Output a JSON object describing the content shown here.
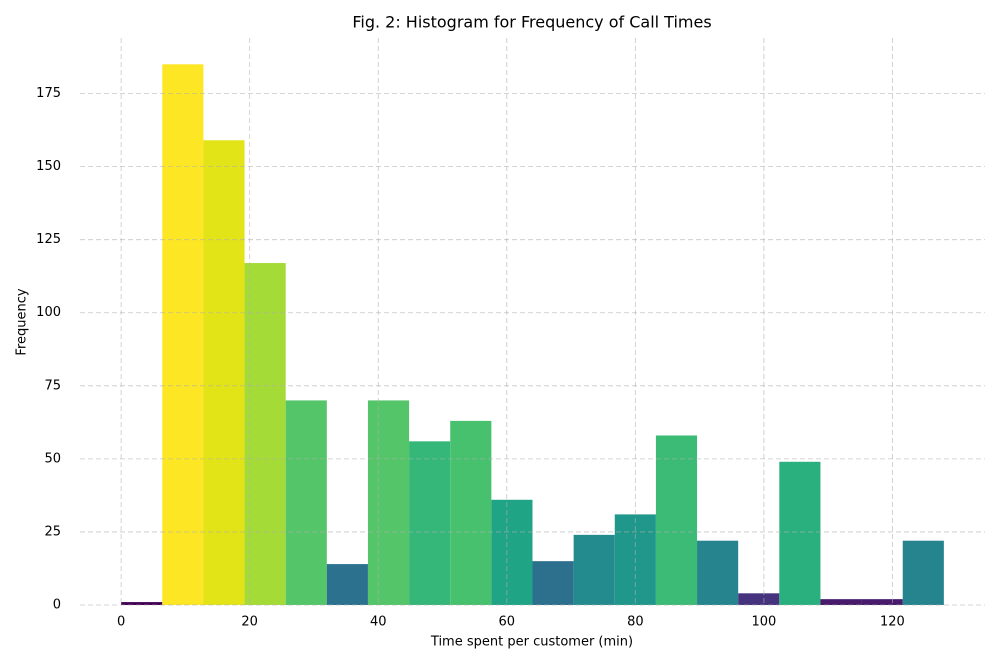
{
  "chart_data": {
    "type": "histogram",
    "title": "Fig. 2: Histogram for Frequency of Call Times",
    "xlabel": "Time spent per customer (min)",
    "ylabel": "Frequency",
    "bins": [
      0,
      6.4,
      12.8,
      19.2,
      25.6,
      32,
      38.4,
      44.8,
      51.2,
      57.6,
      64,
      70.4,
      76.8,
      83.2,
      89.6,
      96,
      102.4,
      108.8,
      115.2,
      121.6,
      128
    ],
    "counts": [
      1,
      185,
      159,
      117,
      70,
      14,
      70,
      56,
      63,
      36,
      15,
      24,
      31,
      58,
      22,
      4,
      49,
      2,
      2,
      22
    ],
    "colors": [
      "#440154",
      "#fde725",
      "#e2e418",
      "#a5db36",
      "#54c568",
      "#2c728e",
      "#54c568",
      "#35b779",
      "#48c16e",
      "#20a486",
      "#2d708e",
      "#238a8d",
      "#1f988b",
      "#3bbb75",
      "#25848e",
      "#46337e",
      "#2ab07f",
      "#481a6c",
      "#481a6c",
      "#25848e"
    ],
    "xlim": [
      -6.4,
      134.4
    ],
    "ylim": [
      0,
      194
    ],
    "xticks": [
      0,
      20,
      40,
      60,
      80,
      100,
      120
    ],
    "yticks": [
      0,
      25,
      50,
      75,
      100,
      125,
      150,
      175
    ],
    "grid": true
  }
}
